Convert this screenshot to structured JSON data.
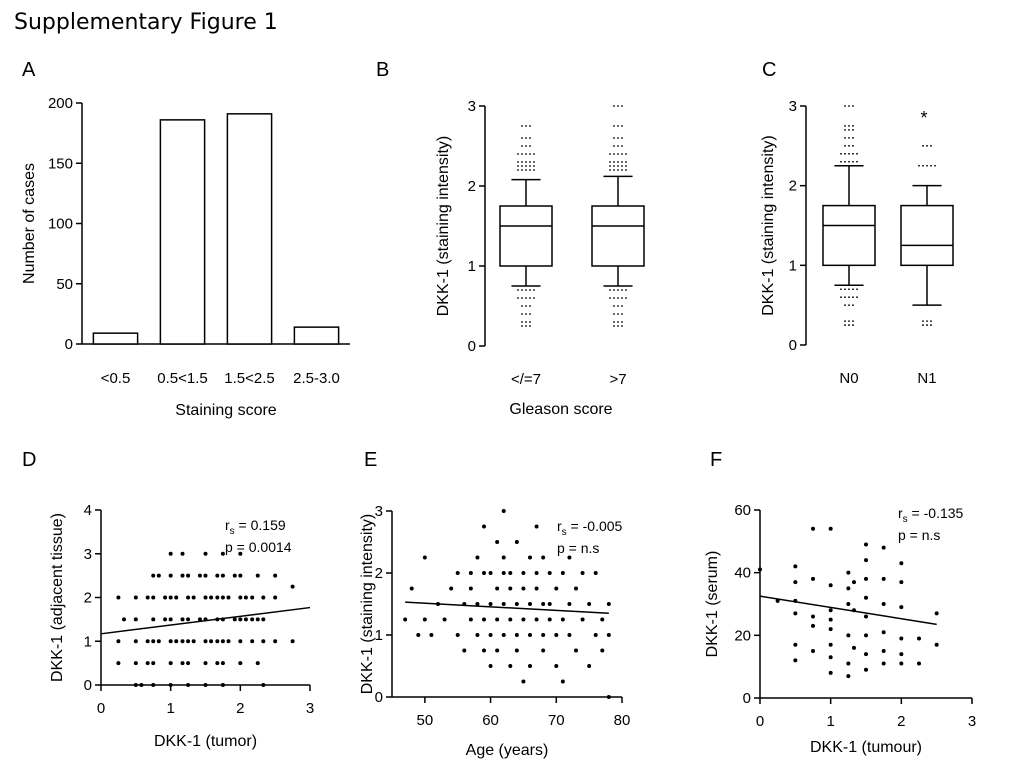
{
  "figure_title": "Supplementary Figure 1",
  "panels": [
    "A",
    "B",
    "C",
    "D",
    "E",
    "F"
  ],
  "chart_data": [
    {
      "panel": "A",
      "type": "bar",
      "categories": [
        "<0.5",
        "0.5<1.5",
        "1.5<2.5",
        "2.5-3.0"
      ],
      "values": [
        9,
        186,
        191,
        14
      ],
      "xlabel": "Staining score",
      "ylabel": "Number of cases",
      "ylim": [
        0,
        200
      ],
      "yticks": [
        "0",
        "50",
        "100",
        "150",
        "200"
      ],
      "color": "#ffffff"
    },
    {
      "panel": "B",
      "type": "box",
      "categories": [
        "</=7",
        ">7"
      ],
      "boxes": [
        {
          "whisker_low": 0.75,
          "q1": 1.0,
          "median": 1.5,
          "q3": 1.75,
          "whisker_high": 2.08,
          "outliers": [
            0.25,
            0.3,
            0.4,
            0.5,
            0.6,
            0.7,
            2.2,
            2.25,
            2.3,
            2.4,
            2.5,
            2.6,
            2.75
          ]
        },
        {
          "whisker_low": 0.75,
          "q1": 1.0,
          "median": 1.5,
          "q3": 1.75,
          "whisker_high": 2.12,
          "outliers": [
            0.25,
            0.3,
            0.4,
            0.5,
            0.6,
            0.7,
            2.2,
            2.25,
            2.3,
            2.4,
            2.5,
            2.6,
            2.75,
            3.0
          ]
        }
      ],
      "xlabel": "Gleason score",
      "ylabel": "DKK-1 (staining intensity)",
      "ylim": [
        0,
        3
      ],
      "yticks": [
        "0",
        "1",
        "2",
        "3"
      ]
    },
    {
      "panel": "C",
      "type": "box",
      "categories": [
        "N0",
        "N1"
      ],
      "boxes": [
        {
          "whisker_low": 0.75,
          "q1": 1.0,
          "median": 1.5,
          "q3": 1.75,
          "whisker_high": 2.25,
          "outliers": [
            0.25,
            0.3,
            0.5,
            0.6,
            0.7,
            2.3,
            2.4,
            2.5,
            2.6,
            2.7,
            2.75,
            3.0
          ]
        },
        {
          "whisker_low": 0.5,
          "q1": 1.0,
          "median": 1.25,
          "q3": 1.75,
          "whisker_high": 2.0,
          "outliers": [
            0.25,
            0.3,
            2.25,
            2.5
          ]
        }
      ],
      "annotation": "*",
      "ylabel": "DKK-1 (staining intensity)",
      "ylim": [
        0,
        3
      ],
      "yticks": [
        "0",
        "1",
        "2",
        "3"
      ]
    },
    {
      "panel": "D",
      "type": "scatter",
      "xlabel": "DKK-1 (tumor)",
      "ylabel": "DKK-1 (adjacent tissue)",
      "xlim": [
        0,
        3
      ],
      "ylim": [
        0,
        4
      ],
      "xticks": [
        "0",
        "1",
        "2",
        "3"
      ],
      "yticks": [
        "0",
        "1",
        "2",
        "3",
        "4"
      ],
      "stat_r": "r",
      "stat_r_sub": "s",
      "stat_r_value": " = 0.159",
      "stat_p": "p = 0.0014",
      "trend": [
        [
          0,
          1.17
        ],
        [
          3,
          1.77
        ]
      ],
      "points": [
        [
          0.25,
          0.5
        ],
        [
          0.25,
          1
        ],
        [
          0.25,
          2
        ],
        [
          0.33,
          1.5
        ],
        [
          0.5,
          0
        ],
        [
          0.5,
          0.5
        ],
        [
          0.5,
          1
        ],
        [
          0.5,
          1.5
        ],
        [
          0.5,
          2
        ],
        [
          0.58,
          0
        ],
        [
          0.67,
          0.5
        ],
        [
          0.67,
          1
        ],
        [
          0.67,
          2
        ],
        [
          0.75,
          0
        ],
        [
          0.75,
          0.5
        ],
        [
          0.75,
          1
        ],
        [
          0.75,
          1.5
        ],
        [
          0.75,
          2
        ],
        [
          0.75,
          2.5
        ],
        [
          0.83,
          1
        ],
        [
          0.83,
          2.5
        ],
        [
          0.92,
          1.5
        ],
        [
          0.92,
          2
        ],
        [
          1,
          0
        ],
        [
          1,
          0.5
        ],
        [
          1,
          1
        ],
        [
          1,
          1.5
        ],
        [
          1,
          2
        ],
        [
          1,
          2.5
        ],
        [
          1,
          3
        ],
        [
          1.08,
          1
        ],
        [
          1.08,
          2
        ],
        [
          1.17,
          0.5
        ],
        [
          1.17,
          1
        ],
        [
          1.17,
          1.5
        ],
        [
          1.17,
          2.5
        ],
        [
          1.17,
          3
        ],
        [
          1.25,
          0
        ],
        [
          1.25,
          0.5
        ],
        [
          1.25,
          1
        ],
        [
          1.25,
          1.5
        ],
        [
          1.25,
          2
        ],
        [
          1.25,
          2.5
        ],
        [
          1.33,
          1
        ],
        [
          1.33,
          2
        ],
        [
          1.42,
          1.5
        ],
        [
          1.42,
          2.5
        ],
        [
          1.5,
          0
        ],
        [
          1.5,
          0.5
        ],
        [
          1.5,
          1
        ],
        [
          1.5,
          1.5
        ],
        [
          1.5,
          2
        ],
        [
          1.5,
          2.5
        ],
        [
          1.5,
          3
        ],
        [
          1.58,
          1
        ],
        [
          1.58,
          2
        ],
        [
          1.67,
          0.5
        ],
        [
          1.67,
          1
        ],
        [
          1.67,
          1.5
        ],
        [
          1.67,
          2
        ],
        [
          1.67,
          2.5
        ],
        [
          1.75,
          0
        ],
        [
          1.75,
          0.5
        ],
        [
          1.75,
          1
        ],
        [
          1.75,
          1.5
        ],
        [
          1.75,
          2
        ],
        [
          1.75,
          2.5
        ],
        [
          1.75,
          3
        ],
        [
          1.83,
          1
        ],
        [
          1.83,
          2
        ],
        [
          1.92,
          1.5
        ],
        [
          1.92,
          2.5
        ],
        [
          2,
          0.5
        ],
        [
          2,
          1
        ],
        [
          2,
          1.5
        ],
        [
          2,
          2
        ],
        [
          2,
          2.5
        ],
        [
          2,
          3
        ],
        [
          2.08,
          1.5
        ],
        [
          2.08,
          2
        ],
        [
          2.17,
          1
        ],
        [
          2.17,
          1.5
        ],
        [
          2.17,
          2
        ],
        [
          2.25,
          0.5
        ],
        [
          2.25,
          1.5
        ],
        [
          2.25,
          2.5
        ],
        [
          2.33,
          0
        ],
        [
          2.33,
          1
        ],
        [
          2.33,
          1.5
        ],
        [
          2.33,
          2
        ],
        [
          2.5,
          1
        ],
        [
          2.5,
          2
        ],
        [
          2.5,
          2.5
        ],
        [
          2.75,
          1
        ],
        [
          2.75,
          2.25
        ]
      ]
    },
    {
      "panel": "E",
      "type": "scatter",
      "xlabel": "Age (years)",
      "ylabel": "DKK-1 (staining intensity)",
      "xlim": [
        45,
        80
      ],
      "ylim": [
        0,
        3
      ],
      "xticks": [
        "50",
        "60",
        "70",
        "80"
      ],
      "yticks": [
        "0",
        "1",
        "2",
        "3"
      ],
      "stat_r": "r",
      "stat_r_sub": "s",
      "stat_r_value": " = -0.005",
      "stat_p": "p = n.s",
      "trend": [
        [
          47,
          1.53
        ],
        [
          78,
          1.35
        ]
      ],
      "points": [
        [
          47,
          1.25
        ],
        [
          48,
          1.75
        ],
        [
          49,
          1
        ],
        [
          50,
          2.25
        ],
        [
          50,
          1.25
        ],
        [
          51,
          1
        ],
        [
          52,
          1.5
        ],
        [
          53,
          1.25
        ],
        [
          54,
          1.75
        ],
        [
          55,
          2
        ],
        [
          55,
          1
        ],
        [
          56,
          1.5
        ],
        [
          56,
          0.75
        ],
        [
          57,
          2
        ],
        [
          57,
          1.25
        ],
        [
          57,
          1.75
        ],
        [
          58,
          2.25
        ],
        [
          58,
          1
        ],
        [
          58,
          1.5
        ],
        [
          59,
          2
        ],
        [
          59,
          0.75
        ],
        [
          59,
          1.25
        ],
        [
          59,
          2.75
        ],
        [
          60,
          1.5
        ],
        [
          60,
          1
        ],
        [
          60,
          2
        ],
        [
          60,
          0.5
        ],
        [
          61,
          2.5
        ],
        [
          61,
          1.25
        ],
        [
          61,
          1.75
        ],
        [
          61,
          0.75
        ],
        [
          62,
          2
        ],
        [
          62,
          1.5
        ],
        [
          62,
          1
        ],
        [
          62,
          2.25
        ],
        [
          62,
          3
        ],
        [
          63,
          1.75
        ],
        [
          63,
          1.25
        ],
        [
          63,
          0.5
        ],
        [
          63,
          2
        ],
        [
          64,
          1.5
        ],
        [
          64,
          1
        ],
        [
          64,
          2.5
        ],
        [
          64,
          0.75
        ],
        [
          65,
          2
        ],
        [
          65,
          1.25
        ],
        [
          65,
          1.75
        ],
        [
          65,
          0.25
        ],
        [
          66,
          1.5
        ],
        [
          66,
          1
        ],
        [
          66,
          2.25
        ],
        [
          66,
          0.5
        ],
        [
          67,
          1.75
        ],
        [
          67,
          1.25
        ],
        [
          67,
          2
        ],
        [
          67,
          2.75
        ],
        [
          68,
          1.5
        ],
        [
          68,
          1
        ],
        [
          68,
          0.75
        ],
        [
          68,
          2.25
        ],
        [
          69,
          2
        ],
        [
          69,
          1.25
        ],
        [
          69,
          1.5
        ],
        [
          70,
          1.75
        ],
        [
          70,
          1
        ],
        [
          70,
          0.5
        ],
        [
          71,
          2
        ],
        [
          71,
          1.25
        ],
        [
          71,
          0.25
        ],
        [
          72,
          1.5
        ],
        [
          72,
          1
        ],
        [
          72,
          2.25
        ],
        [
          73,
          1.75
        ],
        [
          73,
          0.75
        ],
        [
          74,
          2
        ],
        [
          74,
          1.25
        ],
        [
          75,
          1.5
        ],
        [
          75,
          0.5
        ],
        [
          76,
          1
        ],
        [
          76,
          2
        ],
        [
          77,
          1.25
        ],
        [
          77,
          0.75
        ],
        [
          78,
          1
        ],
        [
          78,
          1.5
        ],
        [
          78,
          0
        ]
      ]
    },
    {
      "panel": "F",
      "type": "scatter",
      "xlabel": "DKK-1 (tumour)",
      "ylabel": "DKK-1 (serum)",
      "xlim": [
        0,
        3
      ],
      "ylim": [
        0,
        60
      ],
      "xticks": [
        "0",
        "1",
        "2",
        "3"
      ],
      "yticks": [
        "0",
        "20",
        "40",
        "60"
      ],
      "stat_r": "r",
      "stat_r_sub": "s",
      "stat_r_value": " = -0.135",
      "stat_p": "p = n.s",
      "trend": [
        [
          0,
          32.5
        ],
        [
          2.5,
          23.5
        ]
      ],
      "points": [
        [
          0,
          41
        ],
        [
          0.25,
          31
        ],
        [
          0.5,
          42
        ],
        [
          0.5,
          37
        ],
        [
          0.5,
          27
        ],
        [
          0.5,
          17
        ],
        [
          0.5,
          12
        ],
        [
          0.5,
          31
        ],
        [
          0.75,
          54
        ],
        [
          0.75,
          38
        ],
        [
          0.75,
          26
        ],
        [
          0.75,
          23
        ],
        [
          0.75,
          15
        ],
        [
          1,
          54
        ],
        [
          1,
          36
        ],
        [
          1,
          28
        ],
        [
          1,
          22
        ],
        [
          1,
          17
        ],
        [
          1,
          13
        ],
        [
          1,
          8
        ],
        [
          1,
          25
        ],
        [
          1.25,
          40
        ],
        [
          1.25,
          35
        ],
        [
          1.25,
          30
        ],
        [
          1.25,
          20
        ],
        [
          1.25,
          11
        ],
        [
          1.25,
          7
        ],
        [
          1.33,
          37
        ],
        [
          1.33,
          28
        ],
        [
          1.33,
          16
        ],
        [
          1.5,
          49
        ],
        [
          1.5,
          44
        ],
        [
          1.5,
          38
        ],
        [
          1.5,
          32
        ],
        [
          1.5,
          26
        ],
        [
          1.5,
          20
        ],
        [
          1.5,
          14
        ],
        [
          1.5,
          9
        ],
        [
          1.75,
          48
        ],
        [
          1.75,
          38
        ],
        [
          1.75,
          30
        ],
        [
          1.75,
          21
        ],
        [
          1.75,
          15
        ],
        [
          1.75,
          11
        ],
        [
          2,
          43
        ],
        [
          2,
          37
        ],
        [
          2,
          29
        ],
        [
          2,
          19
        ],
        [
          2,
          14
        ],
        [
          2,
          11
        ],
        [
          2.25,
          19
        ],
        [
          2.25,
          11
        ],
        [
          2.5,
          17
        ],
        [
          2.5,
          27
        ]
      ]
    }
  ]
}
